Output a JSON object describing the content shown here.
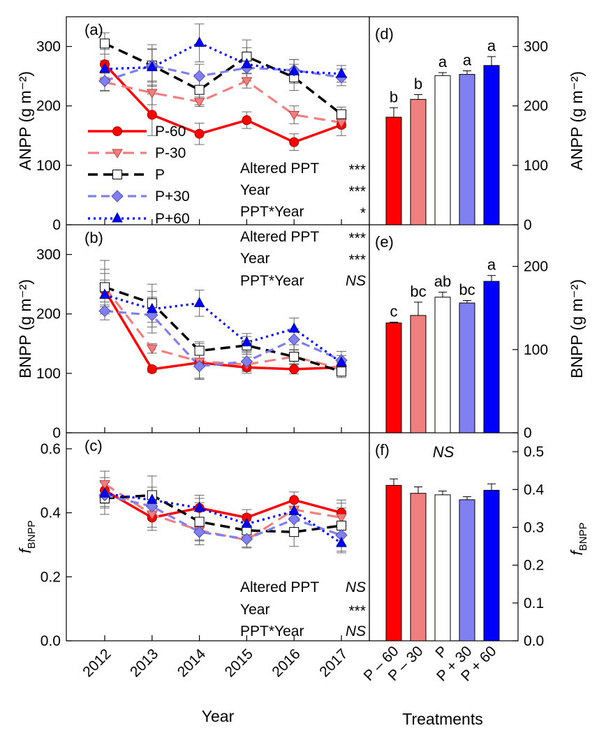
{
  "chart_data": [
    {
      "panel": "(a)",
      "type": "line",
      "x": [
        2012,
        2013,
        2014,
        2015,
        2016,
        2017
      ],
      "ylabel": "ANPP (g m⁻²)",
      "ylim": [
        0,
        350
      ],
      "yticks": [
        0,
        100,
        200,
        300
      ],
      "series": [
        {
          "name": "P-60",
          "values": [
            270,
            185,
            153,
            176,
            139,
            168
          ],
          "errors": [
            25,
            35,
            18,
            14,
            14,
            18
          ]
        },
        {
          "name": "P-30",
          "values": [
            240,
            222,
            207,
            242,
            185,
            172
          ],
          "errors": [
            15,
            20,
            8,
            12,
            15,
            8
          ]
        },
        {
          "name": "P",
          "values": [
            305,
            268,
            227,
            283,
            248,
            186
          ],
          "errors": [
            18,
            35,
            25,
            28,
            22,
            12
          ]
        },
        {
          "name": "P+30",
          "values": [
            242,
            268,
            250,
            264,
            260,
            248
          ],
          "errors": [
            16,
            28,
            20,
            18,
            18,
            14
          ]
        },
        {
          "name": "P+60",
          "values": [
            262,
            265,
            306,
            270,
            258,
            254
          ],
          "errors": [
            14,
            30,
            32,
            28,
            20,
            14
          ]
        }
      ],
      "stats": [
        {
          "label": "Altered PPT",
          "value": "***"
        },
        {
          "label": "Year",
          "value": "***"
        },
        {
          "label": "PPT*Year",
          "value": "*"
        }
      ]
    },
    {
      "panel": "(b)",
      "type": "line",
      "x": [
        2012,
        2013,
        2014,
        2015,
        2016,
        2017
      ],
      "ylabel": "BNPP (g m⁻²)",
      "ylim": [
        0,
        350
      ],
      "yticks": [
        0,
        100,
        200,
        300
      ],
      "series": [
        {
          "name": "P-60",
          "values": [
            240,
            107,
            118,
            110,
            107,
            110
          ],
          "errors": [
            28,
            5,
            28,
            10,
            8,
            8
          ]
        },
        {
          "name": "P-30",
          "values": [
            245,
            142,
            120,
            115,
            128,
            108
          ],
          "errors": [
            30,
            8,
            30,
            12,
            12,
            8
          ]
        },
        {
          "name": "P",
          "values": [
            245,
            218,
            138,
            147,
            128,
            103
          ],
          "errors": [
            45,
            32,
            15,
            15,
            20,
            10
          ]
        },
        {
          "name": "P+30",
          "values": [
            205,
            198,
            112,
            120,
            157,
            122
          ],
          "errors": [
            15,
            30,
            20,
            15,
            18,
            15
          ]
        },
        {
          "name": "P+60",
          "values": [
            232,
            208,
            218,
            152,
            175,
            118
          ],
          "errors": [
            25,
            30,
            22,
            15,
            18,
            12
          ]
        }
      ],
      "stats": [
        {
          "label": "Altered PPT",
          "value": "***"
        },
        {
          "label": "Year",
          "value": "***"
        },
        {
          "label": "PPT*Year",
          "value": "NS"
        }
      ]
    },
    {
      "panel": "(c)",
      "type": "line",
      "x": [
        2012,
        2013,
        2014,
        2015,
        2016,
        2017
      ],
      "xlabel": "Year",
      "ylabel": "f",
      "ylabel_sub": "BNPP",
      "ylim": [
        0,
        0.65
      ],
      "yticks": [
        0.0,
        0.2,
        0.4,
        0.6
      ],
      "ytick_labels": [
        "0.0",
        "0.2",
        "0.4",
        "0.6"
      ],
      "series": [
        {
          "name": "P-60",
          "values": [
            0.47,
            0.385,
            0.415,
            0.385,
            0.44,
            0.4
          ],
          "errors": [
            0.04,
            0.04,
            0.03,
            0.025,
            0.025,
            0.03
          ]
        },
        {
          "name": "P-30",
          "values": [
            0.49,
            0.395,
            0.345,
            0.315,
            0.41,
            0.385
          ],
          "errors": [
            0.04,
            0.04,
            0.03,
            0.025,
            0.03,
            0.03
          ]
        },
        {
          "name": "P",
          "values": [
            0.445,
            0.455,
            0.372,
            0.345,
            0.34,
            0.36
          ],
          "errors": [
            0.05,
            0.06,
            0.06,
            0.03,
            0.045,
            0.08
          ]
        },
        {
          "name": "P+30",
          "values": [
            0.455,
            0.42,
            0.34,
            0.318,
            0.38,
            0.33
          ],
          "errors": [
            0.04,
            0.04,
            0.04,
            0.025,
            0.03,
            0.03
          ]
        },
        {
          "name": "P+60",
          "values": [
            0.46,
            0.44,
            0.415,
            0.365,
            0.405,
            0.305
          ],
          "errors": [
            0.04,
            0.04,
            0.04,
            0.03,
            0.03,
            0.03
          ]
        }
      ],
      "stats": [
        {
          "label": "Altered PPT",
          "value": "NS"
        },
        {
          "label": "Year",
          "value": "***"
        },
        {
          "label": "PPT*Year",
          "value": "NS"
        }
      ]
    },
    {
      "panel": "(d)",
      "type": "bar",
      "categories": [
        "P – 60",
        "P – 30",
        "P",
        "P + 30",
        "P + 60"
      ],
      "ylabel": "ANPP (g m⁻²)",
      "ylim": [
        0,
        350
      ],
      "yticks": [
        0,
        100,
        200,
        300
      ],
      "values": [
        181,
        211,
        251,
        253,
        268
      ],
      "errors": [
        16,
        8,
        5,
        6,
        15
      ],
      "letters": [
        "b",
        "b",
        "a",
        "a",
        "a"
      ]
    },
    {
      "panel": "(e)",
      "type": "bar",
      "categories": [
        "P – 60",
        "P – 30",
        "P",
        "P + 30",
        "P + 60"
      ],
      "ylabel": "BNPP (g m⁻²)",
      "ylim": [
        0,
        250
      ],
      "yticks": [
        0,
        100,
        200
      ],
      "values": [
        132,
        141,
        163,
        156,
        182
      ],
      "errors": [
        1,
        16,
        6,
        3,
        7
      ],
      "letters": [
        "c",
        "bc",
        "ab",
        "bc",
        "a"
      ]
    },
    {
      "panel": "(f)",
      "type": "bar",
      "categories": [
        "P – 60",
        "P – 30",
        "P",
        "P + 30",
        "P + 60"
      ],
      "xlabel": "Treatments",
      "ylabel": "f",
      "ylabel_sub": "BNPP",
      "ylim": [
        0,
        0.55
      ],
      "yticks": [
        0.0,
        0.1,
        0.2,
        0.3,
        0.4,
        0.5
      ],
      "ytick_labels": [
        "0.0",
        "0.1",
        "0.2",
        "0.3",
        "0.4",
        "0.5"
      ],
      "values": [
        0.411,
        0.39,
        0.386,
        0.373,
        0.398
      ],
      "errors": [
        0.017,
        0.017,
        0.01,
        0.008,
        0.017
      ],
      "annotation": "NS"
    }
  ],
  "colors": {
    "P-60": "#ff0000",
    "P-30": "#f08080",
    "P": "#000000",
    "P+30": "#8080f0",
    "P+60": "#0000ff"
  },
  "bar_fills": [
    "#ff0000",
    "#f08080",
    "#ffffff",
    "#8080f0",
    "#0000ff"
  ]
}
